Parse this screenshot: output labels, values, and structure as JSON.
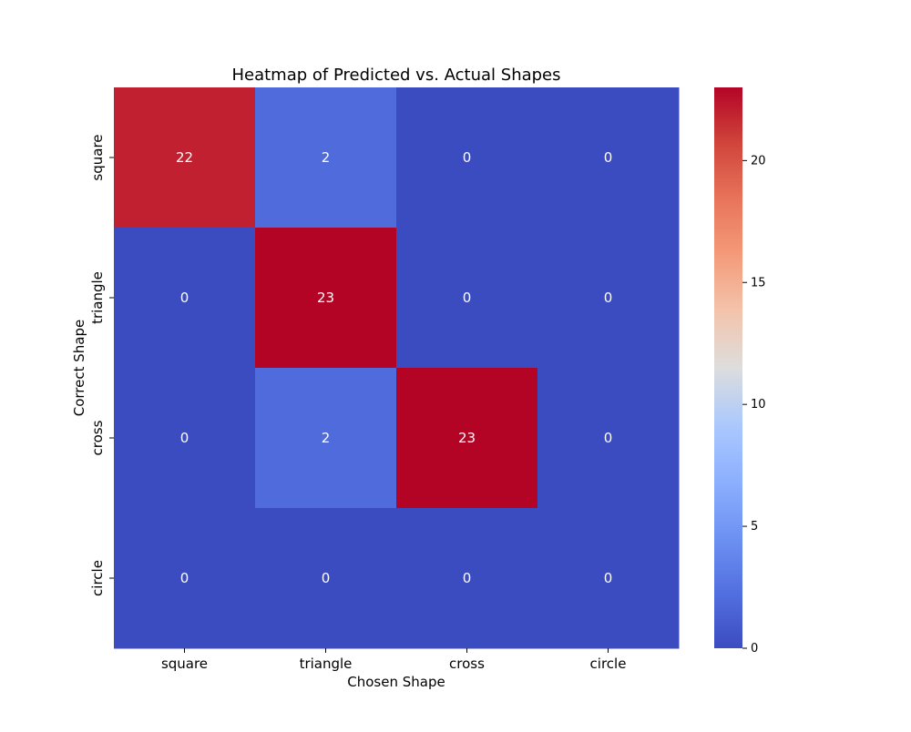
{
  "chart_data": {
    "type": "heatmap",
    "title": "Heatmap of Predicted vs. Actual Shapes",
    "xlabel": "Chosen Shape",
    "ylabel": "Correct Shape",
    "x_categories": [
      "square",
      "triangle",
      "cross",
      "circle"
    ],
    "y_categories": [
      "square",
      "triangle",
      "cross",
      "circle"
    ],
    "values": [
      [
        22,
        2,
        0,
        0
      ],
      [
        0,
        23,
        0,
        0
      ],
      [
        0,
        2,
        23,
        0
      ],
      [
        0,
        0,
        0,
        0
      ]
    ],
    "colormap": "coolwarm",
    "vmin": 0,
    "vmax": 23,
    "colorbar_ticks": [
      0,
      5,
      10,
      15,
      20
    ]
  }
}
